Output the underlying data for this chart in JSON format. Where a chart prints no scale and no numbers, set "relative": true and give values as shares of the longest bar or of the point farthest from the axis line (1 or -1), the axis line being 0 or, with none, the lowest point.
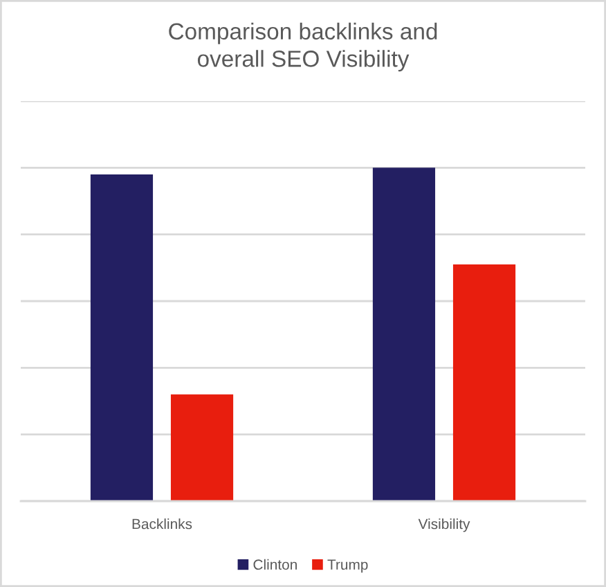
{
  "chart_data": {
    "type": "bar",
    "title": "Comparison backlinks and\noverall SEO Visibility",
    "categories": [
      "Backlinks",
      "Visibility"
    ],
    "series": [
      {
        "name": "Clinton",
        "color": "#231f62",
        "values": [
          0.98,
          1
        ]
      },
      {
        "name": "Trump",
        "color": "#e81e0e",
        "values": [
          0.32,
          0.71
        ]
      }
    ],
    "relative": true,
    "grid": "y",
    "legend": "bottom"
  }
}
